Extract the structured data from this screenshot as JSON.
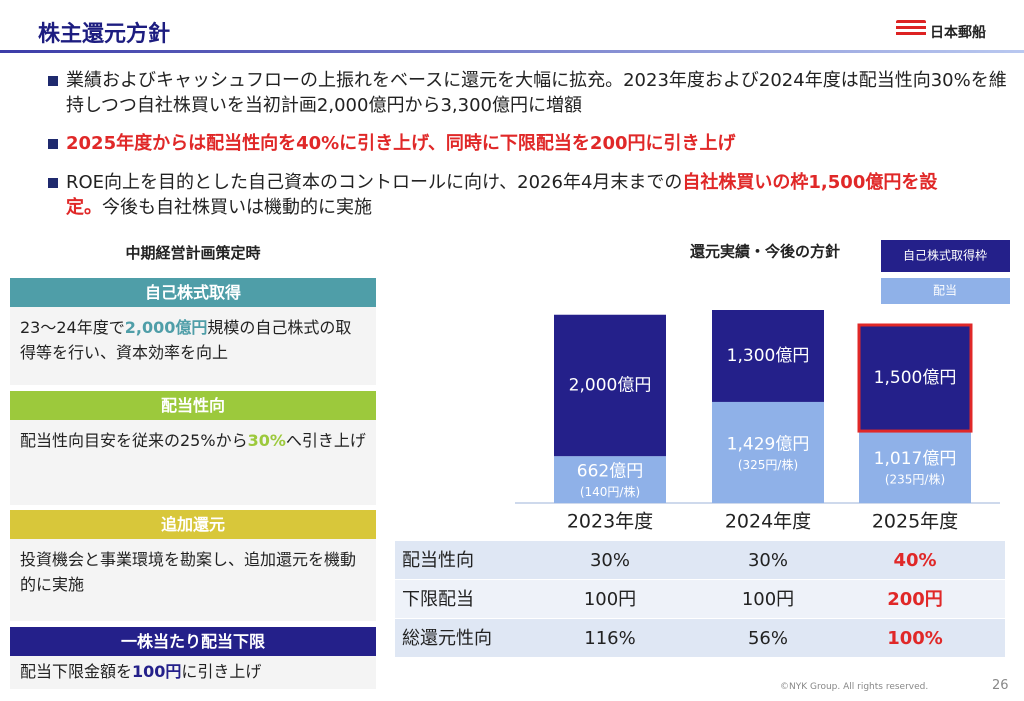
{
  "header": {
    "title": "株主還元方針",
    "logo": "日本郵船"
  },
  "bullets": [
    [
      "業績およびキャッシュフローの上振れをベースに還元を大幅に拡充。2023年度および2024年度は配当性向30%を維持しつつ自社株買いを当初計画2,000億円から3,300億円に増額"
    ],
    [
      "2025年度からは配当性向を40%に引き上げ、同時に下限配当を200円に引き上げ"
    ],
    [
      "ROE向上を目的とした自己資本のコントロールに向け、2026年4月末までの",
      "自社株買いの枠1,500億円を設定。",
      "今後も自社株買いは機動的に実施"
    ]
  ],
  "plan": {
    "title": "中期経営計画策定時",
    "items": [
      {
        "heading": "自己株式取得",
        "body": [
          "23～24年度で",
          "2,000億円",
          "規模の自己株式の取得等を行い、資本効率を向上"
        ]
      },
      {
        "heading": "配当性向",
        "body": [
          "配当性向目安を従来の25%から",
          "30%",
          "へ引き上げ"
        ]
      },
      {
        "heading": "追加還元",
        "body": [
          "投資機会と事業環境を勘案し、追加還元を機動的に実施"
        ]
      },
      {
        "heading": "一株当たり配当下限",
        "body": [
          "配当下限金額を",
          "100円",
          "に引き上げ"
        ]
      }
    ]
  },
  "chart_data": {
    "type": "stacked-bar",
    "title": "還元実績・今後の方針",
    "categories": [
      "2023年度",
      "2024年度",
      "2025年度"
    ],
    "series": [
      {
        "name": "配当",
        "color": "#8fb1e8",
        "values": [
          662,
          1429,
          1017
        ],
        "value_labels": [
          "662億円",
          "1,429億円",
          "1,017億円"
        ],
        "sublabels": [
          "(140円/株)",
          "(325円/株)",
          "(235円/株)"
        ]
      },
      {
        "name": "自己株式取得枠",
        "color": "#24208a",
        "values": [
          2000,
          1300,
          1500
        ],
        "value_labels": [
          "2,000億円",
          "1,300億円",
          "1,500億円"
        ],
        "edgecolors": [
          null,
          null,
          "#e02828"
        ]
      }
    ]
  },
  "table": {
    "rows": [
      [
        "配当性向",
        "30%",
        "30%",
        "40%"
      ],
      [
        "下限配当",
        "100円",
        "100円",
        "200円"
      ],
      [
        "総還元性向",
        "116%",
        "56%",
        "100%"
      ]
    ]
  },
  "footer": {
    "copyright": "©NYK Group. All rights reserved.",
    "page": "26"
  }
}
